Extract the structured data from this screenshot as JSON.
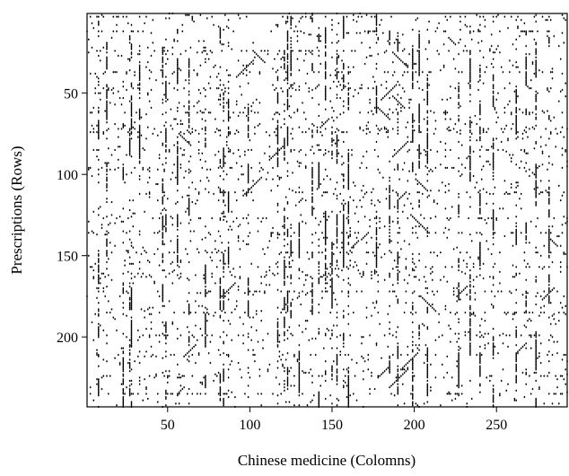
{
  "chart_data": {
    "type": "scatter",
    "subtype": "binary sparsity matrix (spy plot)",
    "title": "",
    "xlabel": "Chinese medicine (Colomns)",
    "ylabel": "Prescriptions (Rows)",
    "xlim": [
      1,
      293
    ],
    "ylim": [
      1,
      243
    ],
    "y_axis_inverted": true,
    "x_ticks": [
      50,
      100,
      150,
      200,
      250
    ],
    "y_ticks": [
      50,
      100,
      150,
      200
    ],
    "x_tick_labels": [
      "50",
      "100",
      "150",
      "200",
      "250"
    ],
    "y_tick_labels": [
      "50",
      "100",
      "150",
      "200"
    ],
    "grid": false,
    "legend": "none",
    "marker_color": "#000000",
    "dense_columns": [
      8,
      13,
      23,
      27,
      28,
      33,
      47,
      49,
      56,
      63,
      73,
      82,
      84,
      87,
      99,
      117,
      121,
      123,
      125,
      130,
      138,
      142,
      146,
      150,
      153,
      157,
      160,
      177,
      185,
      190,
      199,
      203,
      208,
      227,
      234,
      240,
      248,
      262,
      268,
      274,
      282
    ],
    "dense_rows": [
      3,
      12,
      24,
      37,
      47,
      62,
      72,
      74,
      85,
      96,
      111,
      127,
      136,
      148,
      157,
      163,
      172,
      185,
      199,
      211,
      224,
      235
    ]
  }
}
